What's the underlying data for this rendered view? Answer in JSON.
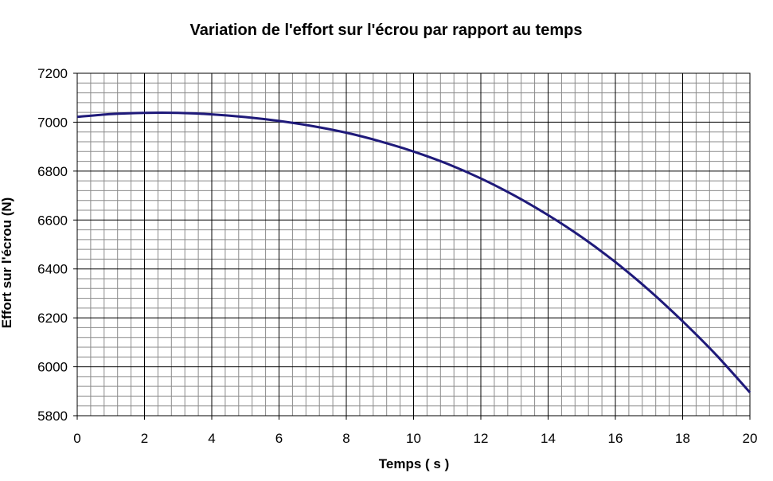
{
  "chart_data": {
    "type": "line",
    "title": "Variation de l'effort sur l'écrou par rapport au temps",
    "xlabel": "Temps ( s )",
    "ylabel": "Effort sur l'écrou (N)",
    "xlim": [
      0,
      20
    ],
    "ylim": [
      5800,
      7200
    ],
    "x_ticks": [
      0,
      2,
      4,
      6,
      8,
      10,
      12,
      14,
      16,
      18,
      20
    ],
    "y_ticks": [
      5800,
      6000,
      6200,
      6400,
      6600,
      6800,
      7000,
      7200
    ],
    "grid": true,
    "legend": "none",
    "series": [
      {
        "color": "#1f1a7a",
        "x": [
          0,
          1,
          2,
          3,
          4,
          5,
          6,
          7,
          8,
          9,
          10,
          11,
          12,
          13,
          14,
          15,
          16,
          17,
          18,
          19,
          20
        ],
        "y": [
          7022,
          7033,
          7038,
          7038,
          7032,
          7021,
          7005,
          6984,
          6957,
          6922,
          6880,
          6830,
          6770,
          6700,
          6620,
          6530,
          6428,
          6313,
          6186,
          6048,
          5895
        ]
      }
    ]
  }
}
